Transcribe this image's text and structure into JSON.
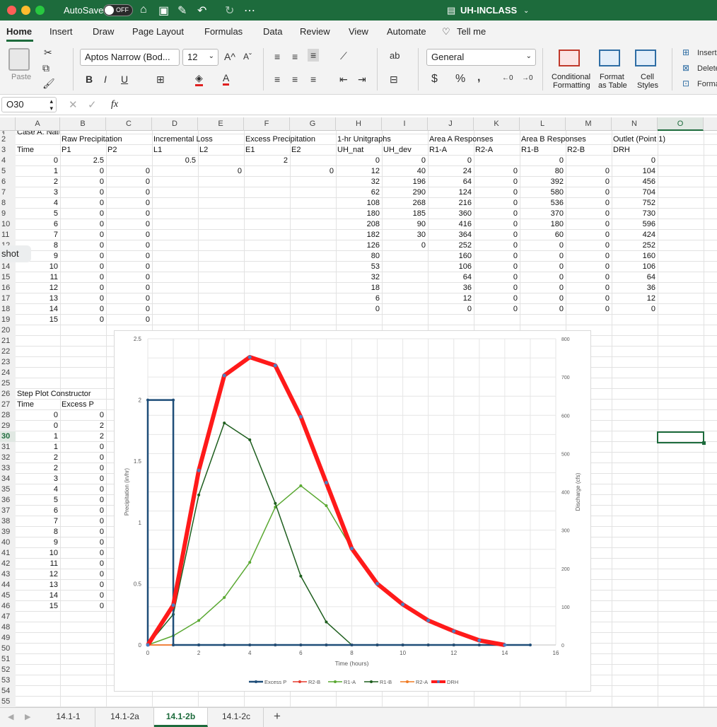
{
  "titlebar": {
    "autosave": "AutoSave",
    "toggle": "OFF",
    "doc_title": "UH-INCLASS"
  },
  "ribbon_tabs": [
    "Home",
    "Insert",
    "Draw",
    "Page Layout",
    "Formulas",
    "Data",
    "Review",
    "View",
    "Automate"
  ],
  "tell_me": "Tell me",
  "ribbon": {
    "paste": "Paste",
    "font_name": "Aptos Narrow (Bod...",
    "font_size": "12",
    "number_format": "General",
    "cond_fmt": [
      "Conditional",
      "Formatting"
    ],
    "fmt_table": [
      "Format",
      "as Table"
    ],
    "cell_styles": [
      "Cell",
      "Styles"
    ],
    "insert": "Insert",
    "delete": "Delete",
    "format": "Format"
  },
  "formula_bar": {
    "name_box": "O30",
    "fx": "fx",
    "formula": ""
  },
  "columns": [
    "A",
    "B",
    "C",
    "D",
    "E",
    "F",
    "G",
    "H",
    "I",
    "J",
    "K",
    "L",
    "M",
    "N",
    "O"
  ],
  "rows": [
    {
      "n": "1",
      "c": {
        "A": "Case A: Natural Conditions both areas"
      }
    },
    {
      "n": "2",
      "c": {
        "B": "Raw Precipitation",
        "D": "Incremental Loss",
        "F": "Excess Precipitation",
        "H": "1-hr Unitgraphs",
        "J": "Area A Responses",
        "L": "Area B Responses",
        "N": "Outlet (Point 1)"
      }
    },
    {
      "n": "3",
      "c": {
        "A": "Time",
        "B": "P1",
        "C": "P2",
        "D": "L1",
        "E": "L2",
        "F": "E1",
        "G": "E2",
        "H": "UH_nat",
        "I": "UH_dev",
        "J": "R1-A",
        "K": "R2-A",
        "L": "R1-B",
        "M": "R2-B",
        "N": "DRH"
      }
    },
    {
      "n": "4",
      "c": {
        "A": "0",
        "B": "2.5",
        "D": "0.5",
        "F": "2",
        "H": "0",
        "I": "0",
        "J": "0",
        "L": "0",
        "N": "0"
      }
    },
    {
      "n": "5",
      "c": {
        "A": "1",
        "B": "0",
        "C": "0",
        "E": "0",
        "G": "0",
        "H": "12",
        "I": "40",
        "J": "24",
        "K": "0",
        "L": "80",
        "M": "0",
        "N": "104"
      }
    },
    {
      "n": "6",
      "c": {
        "A": "2",
        "B": "0",
        "C": "0",
        "H": "32",
        "I": "196",
        "J": "64",
        "K": "0",
        "L": "392",
        "M": "0",
        "N": "456"
      }
    },
    {
      "n": "7",
      "c": {
        "A": "3",
        "B": "0",
        "C": "0",
        "H": "62",
        "I": "290",
        "J": "124",
        "K": "0",
        "L": "580",
        "M": "0",
        "N": "704"
      }
    },
    {
      "n": "8",
      "c": {
        "A": "4",
        "B": "0",
        "C": "0",
        "H": "108",
        "I": "268",
        "J": "216",
        "K": "0",
        "L": "536",
        "M": "0",
        "N": "752"
      }
    },
    {
      "n": "9",
      "c": {
        "A": "5",
        "B": "0",
        "C": "0",
        "H": "180",
        "I": "185",
        "J": "360",
        "K": "0",
        "L": "370",
        "M": "0",
        "N": "730"
      }
    },
    {
      "n": "10",
      "c": {
        "A": "6",
        "B": "0",
        "C": "0",
        "H": "208",
        "I": "90",
        "J": "416",
        "K": "0",
        "L": "180",
        "M": "0",
        "N": "596"
      }
    },
    {
      "n": "11",
      "c": {
        "A": "7",
        "B": "0",
        "C": "0",
        "H": "182",
        "I": "30",
        "J": "364",
        "K": "0",
        "L": "60",
        "M": "0",
        "N": "424"
      }
    },
    {
      "n": "12",
      "c": {
        "A": "8",
        "B": "0",
        "C": "0",
        "H": "126",
        "I": "0",
        "J": "252",
        "K": "0",
        "L": "0",
        "M": "0",
        "N": "252"
      }
    },
    {
      "n": "13",
      "c": {
        "A": "9",
        "B": "0",
        "C": "0",
        "H": "80",
        "J": "160",
        "K": "0",
        "L": "0",
        "M": "0",
        "N": "160"
      }
    },
    {
      "n": "14",
      "c": {
        "A": "10",
        "B": "0",
        "C": "0",
        "H": "53",
        "J": "106",
        "K": "0",
        "L": "0",
        "M": "0",
        "N": "106"
      }
    },
    {
      "n": "15",
      "c": {
        "A": "11",
        "B": "0",
        "C": "0",
        "H": "32",
        "J": "64",
        "K": "0",
        "L": "0",
        "M": "0",
        "N": "64"
      }
    },
    {
      "n": "16",
      "c": {
        "A": "12",
        "B": "0",
        "C": "0",
        "H": "18",
        "J": "36",
        "K": "0",
        "L": "0",
        "M": "0",
        "N": "36"
      }
    },
    {
      "n": "17",
      "c": {
        "A": "13",
        "B": "0",
        "C": "0",
        "H": "6",
        "J": "12",
        "K": "0",
        "L": "0",
        "M": "0",
        "N": "12"
      }
    },
    {
      "n": "18",
      "c": {
        "A": "14",
        "B": "0",
        "C": "0",
        "H": "0",
        "J": "0",
        "K": "0",
        "L": "0",
        "M": "0",
        "N": "0"
      }
    },
    {
      "n": "19",
      "c": {
        "A": "15",
        "B": "0",
        "C": "0"
      }
    },
    {
      "n": "20",
      "c": {}
    },
    {
      "n": "21",
      "c": {}
    },
    {
      "n": "22",
      "c": {}
    },
    {
      "n": "23",
      "c": {}
    },
    {
      "n": "24",
      "c": {}
    },
    {
      "n": "25",
      "c": {}
    },
    {
      "n": "26",
      "c": {
        "A": "Step Plot Constructor"
      }
    },
    {
      "n": "27",
      "c": {
        "A": "Time",
        "B": "Excess P"
      }
    },
    {
      "n": "28",
      "c": {
        "A": "0",
        "B": "0"
      }
    },
    {
      "n": "29",
      "c": {
        "A": "0",
        "B": "2"
      }
    },
    {
      "n": "30",
      "c": {
        "A": "1",
        "B": "2"
      }
    },
    {
      "n": "31",
      "c": {
        "A": "1",
        "B": "0"
      }
    },
    {
      "n": "32",
      "c": {
        "A": "2",
        "B": "0"
      }
    },
    {
      "n": "33",
      "c": {
        "A": "2",
        "B": "0"
      }
    },
    {
      "n": "34",
      "c": {
        "A": "3",
        "B": "0"
      }
    },
    {
      "n": "35",
      "c": {
        "A": "4",
        "B": "0"
      }
    },
    {
      "n": "36",
      "c": {
        "A": "5",
        "B": "0"
      }
    },
    {
      "n": "37",
      "c": {
        "A": "6",
        "B": "0"
      }
    },
    {
      "n": "38",
      "c": {
        "A": "7",
        "B": "0"
      }
    },
    {
      "n": "39",
      "c": {
        "A": "8",
        "B": "0"
      }
    },
    {
      "n": "40",
      "c": {
        "A": "9",
        "B": "0"
      }
    },
    {
      "n": "41",
      "c": {
        "A": "10",
        "B": "0"
      }
    },
    {
      "n": "42",
      "c": {
        "A": "11",
        "B": "0"
      }
    },
    {
      "n": "43",
      "c": {
        "A": "12",
        "B": "0"
      }
    },
    {
      "n": "44",
      "c": {
        "A": "13",
        "B": "0"
      }
    },
    {
      "n": "45",
      "c": {
        "A": "14",
        "B": "0"
      }
    },
    {
      "n": "46",
      "c": {
        "A": "15",
        "B": "0"
      }
    },
    {
      "n": "47",
      "c": {}
    },
    {
      "n": "48",
      "c": {}
    },
    {
      "n": "49",
      "c": {}
    },
    {
      "n": "50",
      "c": {}
    },
    {
      "n": "51",
      "c": {}
    },
    {
      "n": "52",
      "c": {}
    },
    {
      "n": "53",
      "c": {}
    },
    {
      "n": "54",
      "c": {}
    },
    {
      "n": "55",
      "c": {}
    }
  ],
  "overlay_label": "shot",
  "sheet_tabs": [
    "14.1-1",
    "14.1-2a",
    "14.1-2b",
    "14.1-2c"
  ],
  "active_sheet": "14.1-2b",
  "chart_data": {
    "type": "line",
    "xlabel": "Time (hours)",
    "ylabel": "Precipitation (in/hr)",
    "y2label": "Discharge (cfs)",
    "xlim": [
      0,
      16
    ],
    "ylim": [
      0,
      2.5
    ],
    "y2lim": [
      0,
      800
    ],
    "xticks": [
      "0",
      "2",
      "4",
      "6",
      "8",
      "10",
      "12",
      "14",
      "16"
    ],
    "yticks": [
      "0",
      "0.5",
      "1",
      "1.5",
      "2",
      "2.5"
    ],
    "y2ticks": [
      "0",
      "100",
      "200",
      "300",
      "400",
      "500",
      "600",
      "700",
      "800"
    ],
    "grid": true,
    "legend": "bottom",
    "series": [
      {
        "name": "Excess P",
        "axis": "left",
        "color": "#1f4e79",
        "x": [
          0,
          0,
          1,
          1,
          2,
          2,
          3,
          4,
          5,
          6,
          7,
          8,
          9,
          10,
          11,
          12,
          13,
          14,
          15
        ],
        "y": [
          0,
          2,
          2,
          0,
          0,
          0,
          0,
          0,
          0,
          0,
          0,
          0,
          0,
          0,
          0,
          0,
          0,
          0,
          0
        ]
      },
      {
        "name": "R2-B",
        "axis": "right",
        "color": "#e63b2e",
        "x": [
          0,
          1,
          2,
          3,
          4,
          5,
          6,
          7,
          8,
          9,
          10,
          11,
          12,
          13,
          14
        ],
        "y": [
          0,
          0,
          0,
          0,
          0,
          0,
          0,
          0,
          0,
          0,
          0,
          0,
          0,
          0,
          0
        ]
      },
      {
        "name": "R1-A",
        "axis": "right",
        "color": "#5aa832",
        "x": [
          0,
          1,
          2,
          3,
          4,
          5,
          6,
          7,
          8,
          9,
          10,
          11,
          12,
          13,
          14
        ],
        "y": [
          0,
          24,
          64,
          124,
          216,
          360,
          416,
          364,
          252,
          160,
          106,
          64,
          36,
          12,
          0
        ]
      },
      {
        "name": "R1-B",
        "axis": "right",
        "color": "#1e5e1e",
        "x": [
          0,
          1,
          2,
          3,
          4,
          5,
          6,
          7,
          8,
          9,
          10,
          11,
          12,
          13,
          14
        ],
        "y": [
          0,
          80,
          392,
          580,
          536,
          370,
          180,
          60,
          0,
          0,
          0,
          0,
          0,
          0,
          0
        ]
      },
      {
        "name": "R2-A",
        "axis": "right",
        "color": "#f07b24",
        "x": [
          0,
          1,
          2,
          3,
          4,
          5,
          6,
          7,
          8,
          9,
          10,
          11,
          12,
          13,
          14
        ],
        "y": [
          0,
          0,
          0,
          0,
          0,
          0,
          0,
          0,
          0,
          0,
          0,
          0,
          0,
          0,
          0
        ]
      },
      {
        "name": "DRH",
        "axis": "right",
        "color": "#ff1a1a",
        "x": [
          0,
          1,
          2,
          3,
          4,
          5,
          6,
          7,
          8,
          9,
          10,
          11,
          12,
          13,
          14
        ],
        "y": [
          0,
          104,
          456,
          704,
          752,
          730,
          596,
          424,
          252,
          160,
          106,
          64,
          36,
          12,
          0
        ]
      }
    ]
  }
}
